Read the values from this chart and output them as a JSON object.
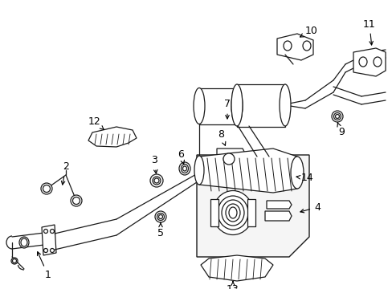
{
  "background_color": "#ffffff",
  "fig_width": 4.89,
  "fig_height": 3.6,
  "dpi": 100,
  "line_color": "#1a1a1a",
  "line_width": 0.9
}
